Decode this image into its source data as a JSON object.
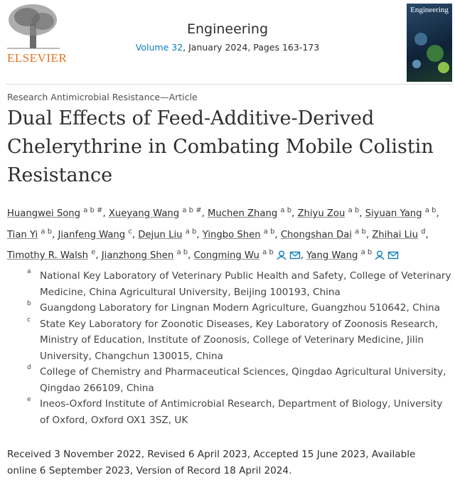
{
  "header": {
    "publisher": "ELSEVIER",
    "journal": "Engineering",
    "volume_link": "Volume 32",
    "issue_info": ", January 2024, Pages 163-173",
    "cover_title": "Engineering"
  },
  "article": {
    "type": "Research Antimicrobial Resistance—Article",
    "title": "Dual Effects of Feed-Additive-Derived Chelerythrine in Combating Mobile Colistin Resistance",
    "authors": [
      {
        "name": "Huangwei Song",
        "sup": "a b #",
        "sep": ","
      },
      {
        "name": "Xueyang Wang",
        "sup": "a b #",
        "sep": ","
      },
      {
        "name": "Muchen Zhang",
        "sup": "a b",
        "sep": ","
      },
      {
        "name": "Zhiyu Zou",
        "sup": "a b",
        "sep": ","
      },
      {
        "name": "Siyuan Yang",
        "sup": "a b",
        "sep": ","
      },
      {
        "name": "Tian Yi",
        "sup": "a b",
        "sep": ","
      },
      {
        "name": "Jianfeng Wang",
        "sup": "c",
        "sep": ","
      },
      {
        "name": "Dejun Liu",
        "sup": "a b",
        "sep": ","
      },
      {
        "name": "Yingbo Shen",
        "sup": "a b",
        "sep": ","
      },
      {
        "name": "Chongshan Dai",
        "sup": "a b",
        "sep": ","
      },
      {
        "name": "Zhihai Liu",
        "sup": "d",
        "sep": ","
      },
      {
        "name": "Timothy R. Walsh",
        "sup": "e",
        "sep": ","
      },
      {
        "name": "Jianzhong Shen",
        "sup": "a b",
        "sep": ","
      },
      {
        "name": "Congming Wu",
        "sup": "a b",
        "corresponding": true,
        "sep": ","
      },
      {
        "name": "Yang Wang",
        "sup": "a b",
        "corresponding": true
      }
    ],
    "affiliations": [
      {
        "letter": "a",
        "text": "National Key Laboratory of Veterinary Public Health and Safety, College of Veterinary Medicine, China Agricultural University, Beijing 100193, China"
      },
      {
        "letter": "b",
        "text": "Guangdong Laboratory for Lingnan Modern Agriculture, Guangzhou 510642, China"
      },
      {
        "letter": "c",
        "text": "State Key Laboratory for Zoonotic Diseases, Key Laboratory of Zoonosis Research, Ministry of Education, Institute of Zoonosis, College of Veterinary Medicine, Jilin University, Changchun 130015, China"
      },
      {
        "letter": "d",
        "text": "College of Chemistry and Pharmaceutical Sciences, Qingdao Agricultural University, Qingdao 266109, China"
      },
      {
        "letter": "e",
        "text": "Ineos-Oxford Institute of Antimicrobial Research, Department of Biology, University of Oxford, Oxford OX1 3SZ, UK"
      }
    ],
    "history": "Received 3 November 2022, Revised 6 April 2023, Accepted 15 June 2023, Available online 6 September 2023, Version of Record 18 April 2024."
  }
}
